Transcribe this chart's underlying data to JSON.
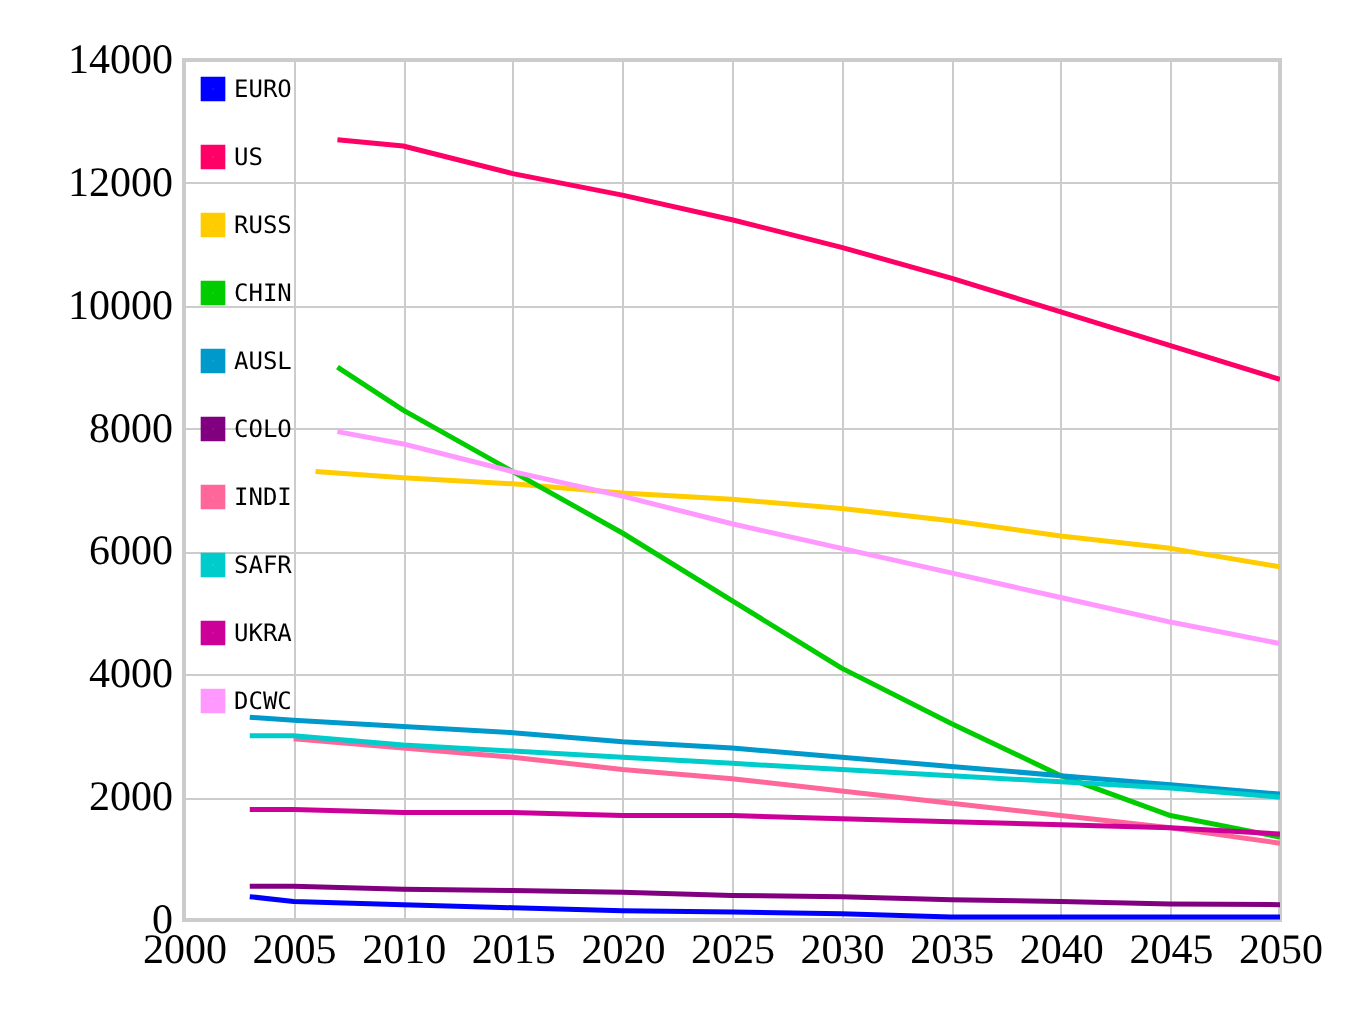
{
  "chart_data": {
    "type": "line",
    "x": [
      2003,
      2005,
      2010,
      2015,
      2020,
      2025,
      2030,
      2035,
      2040,
      2045,
      2050
    ],
    "xlim": [
      2000,
      2050
    ],
    "xticks": [
      2000,
      2005,
      2010,
      2015,
      2020,
      2025,
      2030,
      2035,
      2040,
      2045,
      2050
    ],
    "ylim": [
      0,
      14000
    ],
    "yticks": [
      0,
      2000,
      4000,
      6000,
      8000,
      10000,
      12000,
      14000
    ],
    "grid": true,
    "legend": "top left",
    "marker": "none",
    "line_style": "solid",
    "series": [
      {
        "name": "EURO",
        "color": "#0000ff",
        "values": [
          380,
          300,
          250,
          200,
          150,
          130,
          100,
          50,
          50,
          50,
          50
        ]
      },
      {
        "name": "US",
        "color": "#ff0066",
        "x": [
          2007,
          2010,
          2015,
          2020,
          2025,
          2030,
          2035,
          2040,
          2045,
          2050
        ],
        "values": [
          12700,
          12600,
          12150,
          11800,
          11400,
          10950,
          10450,
          9900,
          9350,
          8800
        ]
      },
      {
        "name": "RUSS",
        "color": "#ffcc00",
        "x": [
          2006,
          2010,
          2015,
          2020,
          2025,
          2030,
          2035,
          2040,
          2045,
          2050
        ],
        "values": [
          7300,
          7200,
          7100,
          6950,
          6850,
          6700,
          6500,
          6250,
          6050,
          5750
        ]
      },
      {
        "name": "CHIN",
        "color": "#00cc00",
        "x": [
          2007,
          2010,
          2015,
          2020,
          2025,
          2030,
          2035,
          2040,
          2045,
          2050
        ],
        "values": [
          9000,
          8300,
          7300,
          6300,
          5200,
          4100,
          3200,
          2350,
          1700,
          1350
        ]
      },
      {
        "name": "AUSL",
        "color": "#0099cc",
        "values": [
          3300,
          3250,
          3150,
          3050,
          2900,
          2800,
          2650,
          2500,
          2350,
          2200,
          2050
        ]
      },
      {
        "name": "COLO",
        "color": "#800080",
        "values": [
          550,
          550,
          500,
          480,
          450,
          400,
          380,
          330,
          300,
          260,
          250
        ]
      },
      {
        "name": "INDI",
        "color": "#ff6699",
        "x": [
          2005,
          2010,
          2015,
          2020,
          2025,
          2030,
          2035,
          2040,
          2045,
          2050
        ],
        "values": [
          2950,
          2800,
          2650,
          2450,
          2300,
          2100,
          1900,
          1700,
          1500,
          1250
        ]
      },
      {
        "name": "SAFR",
        "color": "#00cccc",
        "values": [
          3000,
          3000,
          2850,
          2750,
          2650,
          2550,
          2450,
          2350,
          2250,
          2150,
          2000
        ]
      },
      {
        "name": "UKRA",
        "color": "#cc0099",
        "values": [
          1800,
          1800,
          1750,
          1750,
          1700,
          1700,
          1650,
          1600,
          1550,
          1500,
          1400
        ]
      },
      {
        "name": "DCWC",
        "color": "#ff99ff",
        "x": [
          2007,
          2010,
          2015,
          2020,
          2025,
          2030,
          2035,
          2040,
          2045,
          2050
        ],
        "values": [
          7950,
          7750,
          7300,
          6900,
          6450,
          6050,
          5650,
          5250,
          4850,
          4500
        ]
      }
    ]
  }
}
